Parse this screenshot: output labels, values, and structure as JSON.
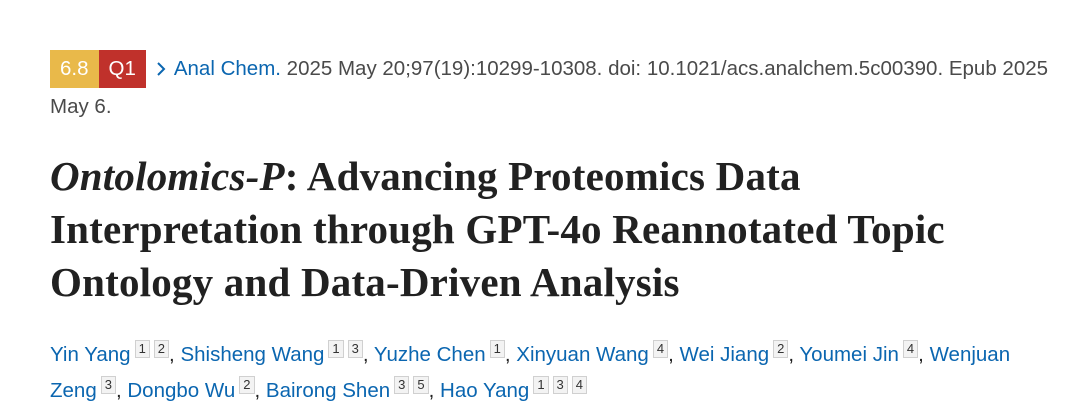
{
  "badges": {
    "impact_factor": "6.8",
    "quartile": "Q1"
  },
  "citation": {
    "journal": "Anal Chem.",
    "details": "2025 May 20;97(19):10299-10308. doi: 10.1021/acs.analchem.5c00390.",
    "epub": "Epub 2025 May 6."
  },
  "title": {
    "italic_part": "Ontolomics-P",
    "rest": ": Advancing Proteomics Data Interpretation through GPT-4o Reannotated Topic Ontology and Data-Driven Analysis"
  },
  "authors": {
    "separator": ",",
    "list": [
      {
        "name": "Yin Yang",
        "affiliations": [
          "1",
          "2"
        ]
      },
      {
        "name": "Shisheng Wang",
        "affiliations": [
          "1",
          "3"
        ]
      },
      {
        "name": "Yuzhe Chen",
        "affiliations": [
          "1"
        ]
      },
      {
        "name": "Xinyuan Wang",
        "affiliations": [
          "4"
        ]
      },
      {
        "name": "Wei Jiang",
        "affiliations": [
          "2"
        ]
      },
      {
        "name": "Youmei Jin",
        "affiliations": [
          "4"
        ]
      },
      {
        "name": "Wenjuan Zeng",
        "affiliations": [
          "3"
        ]
      },
      {
        "name": "Dongbo Wu",
        "affiliations": [
          "2"
        ]
      },
      {
        "name": "Bairong Shen",
        "affiliations": [
          "3",
          "5"
        ]
      },
      {
        "name": "Hao Yang",
        "affiliations": [
          "1",
          "3",
          "4"
        ]
      }
    ]
  }
}
